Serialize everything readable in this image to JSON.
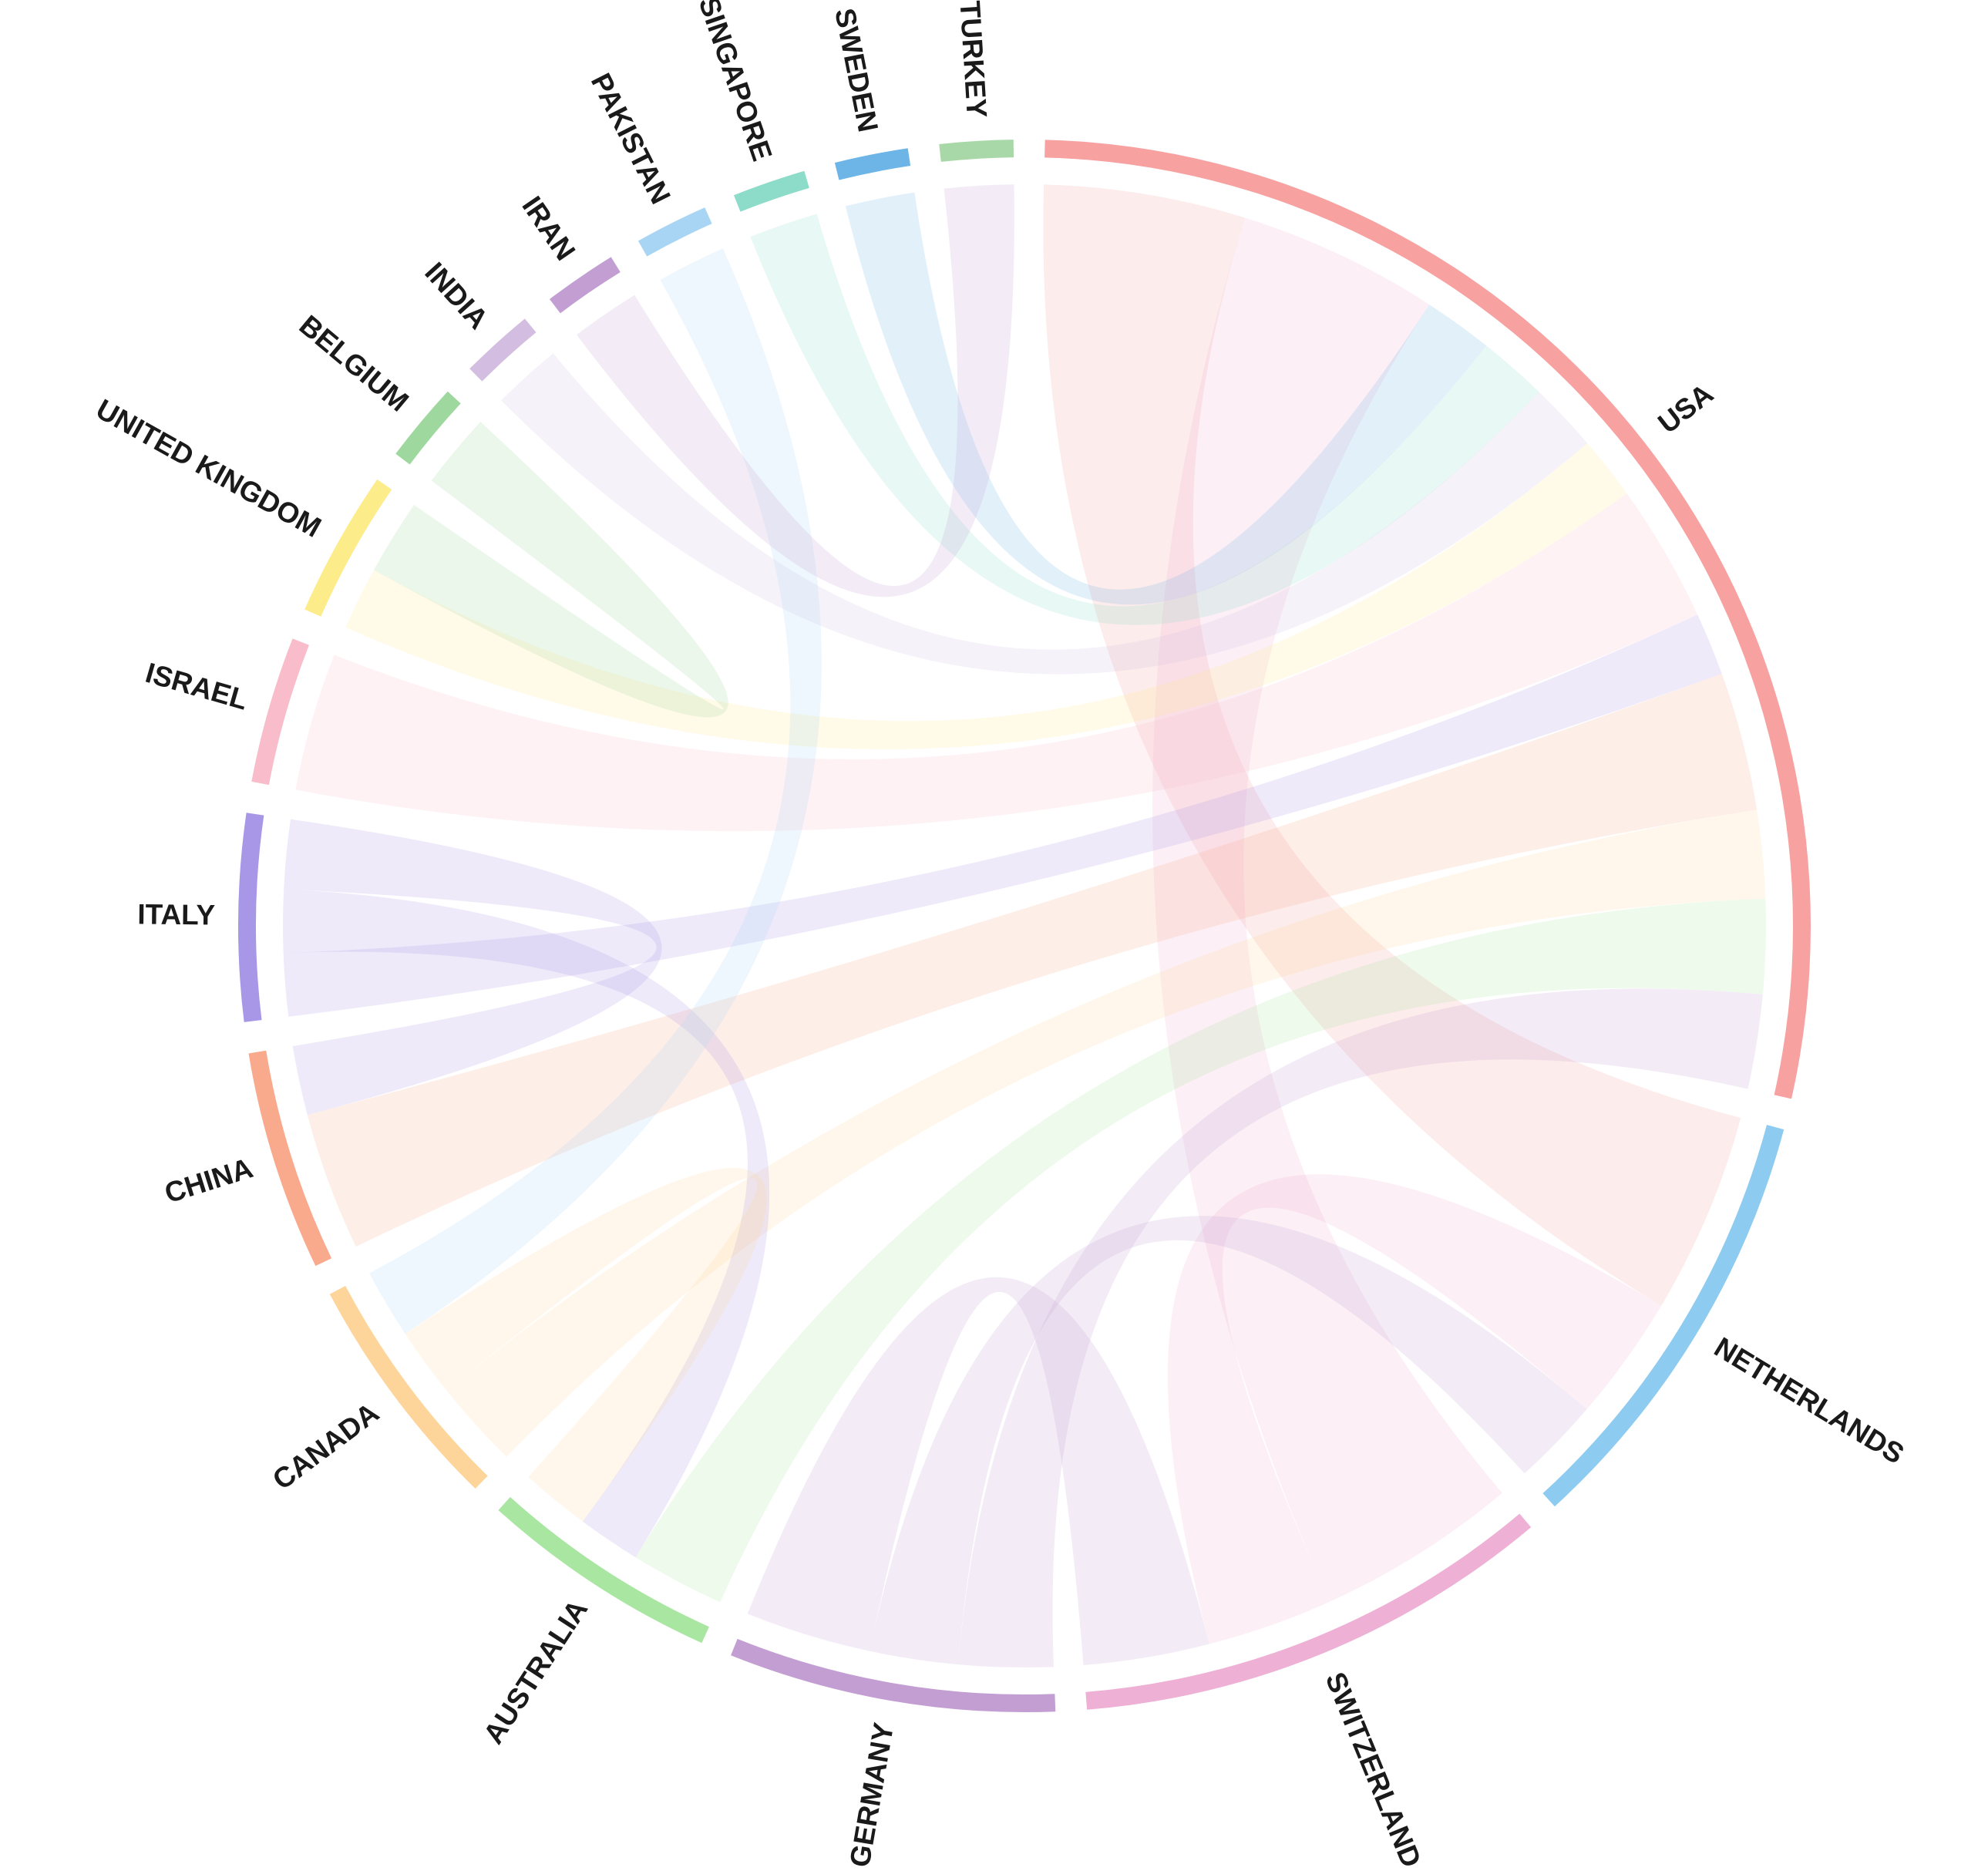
{
  "chart_data": {
    "type": "chord",
    "nodes": [
      {
        "name": "USA",
        "color": "#f7a1a1"
      },
      {
        "name": "NETHERLANDS",
        "color": "#8ecbf0"
      },
      {
        "name": "SWITZERLAND",
        "color": "#eeb0d4"
      },
      {
        "name": "GERMANY",
        "color": "#c39ed3"
      },
      {
        "name": "AUSTRALIA",
        "color": "#a8e6a1"
      },
      {
        "name": "CANADA",
        "color": "#fdd59a"
      },
      {
        "name": "CHINA",
        "color": "#f9a98c"
      },
      {
        "name": "ITALY",
        "color": "#a897e6"
      },
      {
        "name": "ISRAEL",
        "color": "#f9bccb"
      },
      {
        "name": "UNITED KINGDOM",
        "color": "#fdec8a"
      },
      {
        "name": "BELGIUM",
        "color": "#9fd89f"
      },
      {
        "name": "INDIA",
        "color": "#d3bde0"
      },
      {
        "name": "IRAN",
        "color": "#c39ed3"
      },
      {
        "name": "PAKISTAN",
        "color": "#a9d5f5"
      },
      {
        "name": "SINGAPORE",
        "color": "#8ddbc9"
      },
      {
        "name": "SWEDEN",
        "color": "#6cb5e6"
      },
      {
        "name": "TURKEY",
        "color": "#a8d8a8"
      }
    ],
    "links": [
      {
        "source": 0,
        "target": 1,
        "value": 16
      },
      {
        "source": 2,
        "target": 0,
        "value": 16
      },
      {
        "source": 15,
        "target": 0,
        "value": 5.5
      },
      {
        "source": 14,
        "target": 0,
        "value": 5.5
      },
      {
        "source": 11,
        "target": 0,
        "value": 5.5
      },
      {
        "source": 9,
        "target": 0,
        "value": 5
      },
      {
        "source": 8,
        "target": 0,
        "value": 11
      },
      {
        "source": 7,
        "target": 0,
        "value": 5
      },
      {
        "source": 6,
        "target": 0,
        "value": 11
      },
      {
        "source": 5,
        "target": 0,
        "value": 7
      },
      {
        "source": 4,
        "target": 0,
        "value": 7.5
      },
      {
        "source": 3,
        "target": 0,
        "value": 7.5
      },
      {
        "source": 2,
        "target": 1,
        "value": 10
      },
      {
        "source": 3,
        "target": 1,
        "value": 7
      },
      {
        "source": 3,
        "target": 2,
        "value": 10
      },
      {
        "source": 7,
        "target": 4,
        "value": 5
      },
      {
        "source": 5,
        "target": 4,
        "value": 5.5
      },
      {
        "source": 7,
        "target": 6,
        "value": 5.5
      },
      {
        "source": 13,
        "target": 5,
        "value": 5.5
      },
      {
        "source": 10,
        "target": 9,
        "value": 6
      },
      {
        "source": 12,
        "target": 16,
        "value": 5.5
      }
    ]
  }
}
